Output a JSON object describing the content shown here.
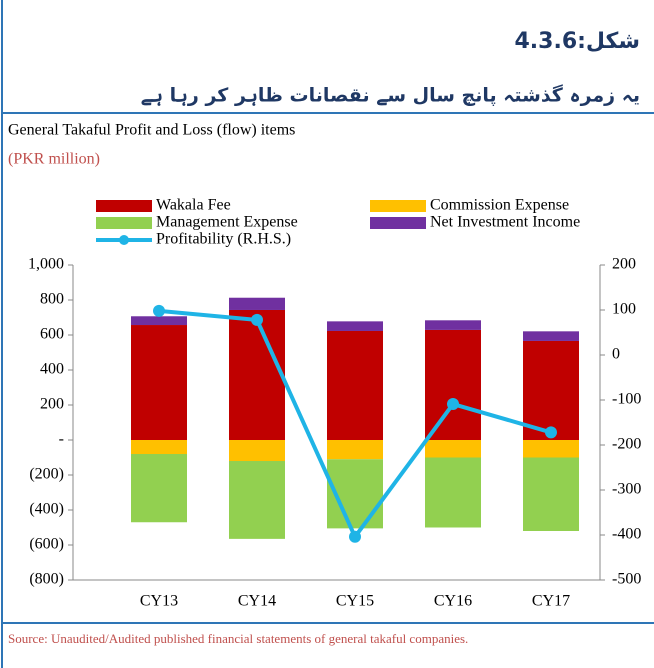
{
  "header": {
    "figure_label": "شکل:4.3.6",
    "caption": "یہ زمرہ گذشتہ پانچ سال سے نقصانات ظاہر کر رہا ہے"
  },
  "chart_data": {
    "type": "bar",
    "title": "General Takaful Profit and Loss (flow) items",
    "subtitle": "(PKR million)",
    "categories": [
      "CY13",
      "CY14",
      "CY15",
      "CY16",
      "CY17"
    ],
    "stacked": true,
    "series": [
      {
        "name": "Wakala Fee",
        "color": "#c00000",
        "values": [
          657,
          743,
          623,
          629,
          566
        ]
      },
      {
        "name": "Commission Expense",
        "color": "#ffc000",
        "values": [
          -80,
          -120,
          -110,
          -100,
          -100
        ]
      },
      {
        "name": "Management Expense",
        "color": "#92d050",
        "values": [
          -390,
          -445,
          -395,
          -400,
          -420
        ]
      },
      {
        "name": "Net Investment Income",
        "color": "#7030a0",
        "values": [
          50,
          70,
          55,
          55,
          55
        ]
      },
      {
        "name": "Profitability (R.H.S.)",
        "color": "#1fb4e6",
        "type": "line",
        "axis": "y2",
        "values": [
          98,
          78,
          -404,
          -109,
          -172
        ]
      }
    ],
    "ylim": [
      -800,
      1000
    ],
    "yticks": [
      {
        "value": -800,
        "label": "(800)"
      },
      {
        "value": -600,
        "label": "(600)"
      },
      {
        "value": -400,
        "label": "(400)"
      },
      {
        "value": -200,
        "label": "(200)"
      },
      {
        "value": 0,
        "label": "-"
      },
      200,
      400,
      600,
      800,
      {
        "value": 1000,
        "label": "1,000"
      }
    ],
    "y2lim": [
      -500,
      200
    ],
    "y2ticks": [
      -500,
      -400,
      -300,
      -200,
      -100,
      0,
      100,
      200
    ],
    "source": "Source: Unaudited/Audited published financial statements of general takaful companies."
  }
}
